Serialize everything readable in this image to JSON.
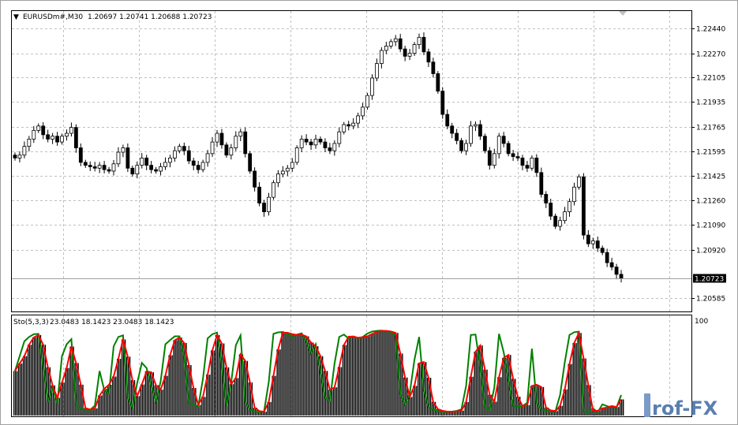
{
  "window": {
    "header_symbol": "EURUSDm#,M30",
    "header_ohlc": "1.20697 1.20741 1.20688 1.20723",
    "menu_glyph": "▼"
  },
  "chart_data": [
    {
      "type": "candlestick",
      "title": "EURUSDm#,M30",
      "ylim": [
        1.205,
        1.2255
      ],
      "y_ticks": [
        "1.22440",
        "1.22270",
        "1.22105",
        "1.21935",
        "1.21765",
        "1.21595",
        "1.21425",
        "1.21260",
        "1.21090",
        "1.20920",
        "1.20585"
      ],
      "current_price_label": "1.20723",
      "current_price": 1.20723,
      "colors": {
        "bull": "#ffffff",
        "bear": "#000000",
        "wick": "#000000",
        "price_line": "#a0a0a0",
        "grid": "#c0c0c0"
      },
      "grid": true,
      "closes": [
        1.2155,
        1.2157,
        1.2163,
        1.2168,
        1.2174,
        1.2177,
        1.2171,
        1.2168,
        1.217,
        1.2166,
        1.217,
        1.2172,
        1.2176,
        1.2162,
        1.2152,
        1.215,
        1.2149,
        1.2148,
        1.215,
        1.2147,
        1.2146,
        1.2151,
        1.2159,
        1.2162,
        1.2148,
        1.2144,
        1.215,
        1.2155,
        1.215,
        1.2147,
        1.2146,
        1.2149,
        1.2152,
        1.2155,
        1.216,
        1.2163,
        1.216,
        1.2153,
        1.215,
        1.2147,
        1.2152,
        1.2158,
        1.2166,
        1.2172,
        1.2164,
        1.2157,
        1.2162,
        1.217,
        1.2173,
        1.2158,
        1.2146,
        1.2135,
        1.2124,
        1.2118,
        1.2128,
        1.2138,
        1.2144,
        1.2146,
        1.2148,
        1.2152,
        1.2162,
        1.2168,
        1.2166,
        1.2164,
        1.2168,
        1.2166,
        1.2162,
        1.216,
        1.2165,
        1.2173,
        1.2178,
        1.2177,
        1.2179,
        1.2184,
        1.219,
        1.2198,
        1.221,
        1.222,
        1.2229,
        1.2232,
        1.2235,
        1.2237,
        1.223,
        1.2225,
        1.2227,
        1.2233,
        1.2238,
        1.2228,
        1.2221,
        1.2213,
        1.2201,
        1.2185,
        1.2177,
        1.2172,
        1.2167,
        1.216,
        1.2165,
        1.2177,
        1.2178,
        1.217,
        1.216,
        1.215,
        1.2158,
        1.217,
        1.2165,
        1.2158,
        1.2156,
        1.2155,
        1.215,
        1.2148,
        1.2155,
        1.2145,
        1.213,
        1.2124,
        1.2115,
        1.2108,
        1.2112,
        1.2118,
        1.2125,
        1.2135,
        1.2142,
        1.2102,
        1.2096,
        1.2098,
        1.2093,
        1.209,
        1.2083,
        1.208,
        1.2075,
        1.2072
      ],
      "stochastic": {
        "name": "Sto(5,3,3)",
        "main_value": 23.0483,
        "signal_value": 18.1423,
        "header_values": "23.0483 18.1423 23.0483 18.1423",
        "ylim": [
          0,
          100
        ],
        "y_tick": "100",
        "colors": {
          "main": "#008000",
          "signal": "#ff0000",
          "histogram": "#000000"
        }
      }
    }
  ],
  "watermark": {
    "text": "rof-FX"
  }
}
